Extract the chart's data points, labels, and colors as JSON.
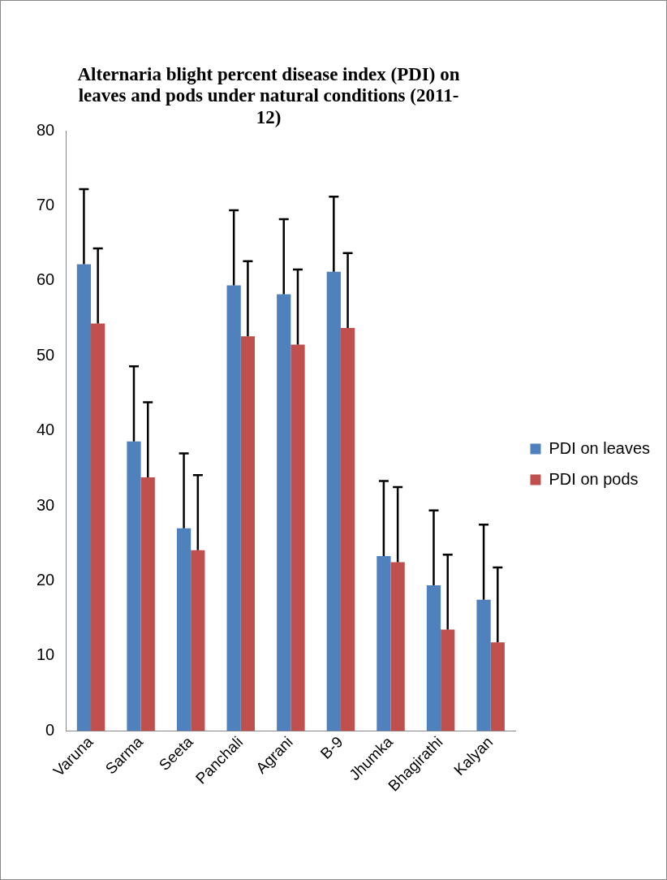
{
  "chart_data": {
    "type": "bar",
    "title": "Alternaria blight percent disease index (PDI) on leaves and pods under natural conditions (2011-12)",
    "categories": [
      "Varuna",
      "Sarma",
      "Seeta",
      "Panchali",
      "Agrani",
      "B-9",
      "Jhumka",
      "Bhagirathi",
      "Kalyan"
    ],
    "series": [
      {
        "name": "PDI on leaves",
        "color": "#4f81bd",
        "values": [
          62.2,
          38.6,
          27.0,
          59.4,
          58.2,
          61.2,
          23.3,
          19.4,
          17.5
        ],
        "errors": [
          [
            62.2,
            72.2
          ],
          [
            38.6,
            48.6
          ],
          [
            27.0,
            37.0
          ],
          [
            59.4,
            69.4
          ],
          [
            58.2,
            68.2
          ],
          [
            61.2,
            71.2
          ],
          [
            23.3,
            33.3
          ],
          [
            19.4,
            29.4
          ],
          [
            17.5,
            27.5
          ]
        ]
      },
      {
        "name": "PDI on pods",
        "color": "#c0504d",
        "values": [
          54.3,
          33.8,
          24.1,
          52.6,
          51.5,
          53.7,
          22.5,
          13.5,
          11.8
        ],
        "errors": [
          [
            54.3,
            64.3
          ],
          [
            33.8,
            43.8
          ],
          [
            24.1,
            34.1
          ],
          [
            52.6,
            62.6
          ],
          [
            51.5,
            61.5
          ],
          [
            53.7,
            63.7
          ],
          [
            22.5,
            32.5
          ],
          [
            13.5,
            23.5
          ],
          [
            11.8,
            21.8
          ]
        ]
      }
    ],
    "ylim": [
      0,
      80
    ],
    "yticks": [
      0,
      10,
      20,
      30,
      40,
      50,
      60,
      70,
      80
    ],
    "grid": false,
    "legend": "right"
  }
}
